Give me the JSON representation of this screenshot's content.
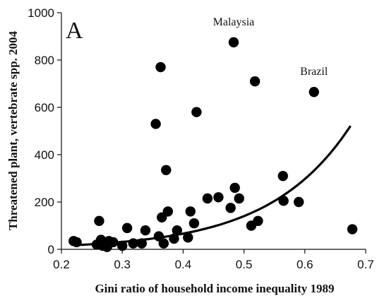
{
  "chart_data": {
    "type": "scatter",
    "panel_label": "A",
    "xlabel": "Gini ratio of household income inequality 1989",
    "ylabel": "Threatened plant, vertebrate spp. 2004",
    "xlim": [
      0.2,
      0.7
    ],
    "ylim": [
      0,
      1000
    ],
    "x_ticks": [
      "0.2",
      "0.3",
      "0.4",
      "0.5",
      "0.6",
      "0.7"
    ],
    "x_tick_values": [
      0.2,
      0.3,
      0.4,
      0.5,
      0.6,
      0.7
    ],
    "y_ticks": [
      "0",
      "200",
      "400",
      "600",
      "800",
      "1000"
    ],
    "y_tick_values": [
      0,
      200,
      400,
      600,
      800,
      1000
    ],
    "grid": false,
    "points": [
      {
        "x": 0.22,
        "y": 35
      },
      {
        "x": 0.225,
        "y": 30
      },
      {
        "x": 0.258,
        "y": 20
      },
      {
        "x": 0.262,
        "y": 120
      },
      {
        "x": 0.265,
        "y": 40
      },
      {
        "x": 0.268,
        "y": 15
      },
      {
        "x": 0.275,
        "y": 10
      },
      {
        "x": 0.278,
        "y": 35
      },
      {
        "x": 0.285,
        "y": 30
      },
      {
        "x": 0.3,
        "y": 15
      },
      {
        "x": 0.308,
        "y": 90
      },
      {
        "x": 0.318,
        "y": 25
      },
      {
        "x": 0.332,
        "y": 25
      },
      {
        "x": 0.338,
        "y": 80
      },
      {
        "x": 0.355,
        "y": 530
      },
      {
        "x": 0.36,
        "y": 55
      },
      {
        "x": 0.363,
        "y": 770
      },
      {
        "x": 0.365,
        "y": 135
      },
      {
        "x": 0.368,
        "y": 25
      },
      {
        "x": 0.372,
        "y": 335
      },
      {
        "x": 0.375,
        "y": 160
      },
      {
        "x": 0.385,
        "y": 45
      },
      {
        "x": 0.39,
        "y": 80
      },
      {
        "x": 0.408,
        "y": 50
      },
      {
        "x": 0.412,
        "y": 160
      },
      {
        "x": 0.418,
        "y": 110
      },
      {
        "x": 0.422,
        "y": 580
      },
      {
        "x": 0.44,
        "y": 215
      },
      {
        "x": 0.458,
        "y": 220
      },
      {
        "x": 0.478,
        "y": 175
      },
      {
        "x": 0.483,
        "y": 875
      },
      {
        "x": 0.485,
        "y": 260
      },
      {
        "x": 0.492,
        "y": 215
      },
      {
        "x": 0.512,
        "y": 100
      },
      {
        "x": 0.518,
        "y": 710
      },
      {
        "x": 0.523,
        "y": 120
      },
      {
        "x": 0.564,
        "y": 310
      },
      {
        "x": 0.565,
        "y": 205
      },
      {
        "x": 0.59,
        "y": 200
      },
      {
        "x": 0.615,
        "y": 665
      },
      {
        "x": 0.678,
        "y": 85
      }
    ],
    "trend_line": {
      "a": 3.3,
      "b": 7.5,
      "x_start": 0.22,
      "x_end": 0.675
    },
    "annotations": [
      {
        "text": "Malaysia",
        "x": 0.483,
        "y": 875
      },
      {
        "text": "Brazil",
        "x": 0.615,
        "y": 665
      }
    ]
  }
}
